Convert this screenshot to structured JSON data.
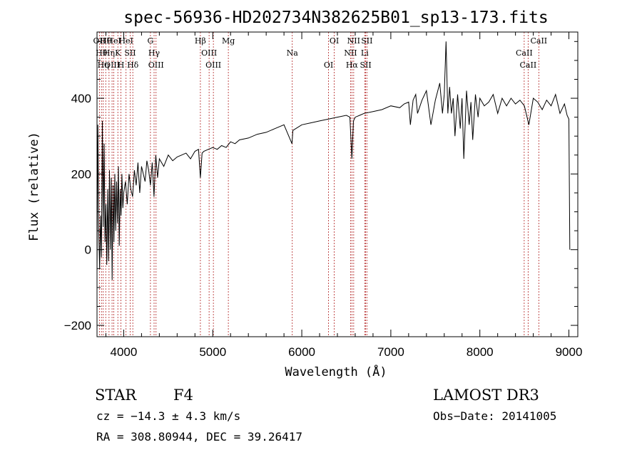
{
  "chart_data": {
    "type": "line",
    "title": "spec-56936-HD202734N382625B01_sp13-173.fits",
    "xlabel": "Wavelength (Å)",
    "ylabel": "Flux (relative)",
    "xlim": [
      3700,
      9100
    ],
    "ylim": [
      -230,
      575
    ],
    "xticks": [
      4000,
      5000,
      6000,
      7000,
      8000,
      9000
    ],
    "yticks": [
      -200,
      0,
      200,
      400
    ],
    "grid": false,
    "legend": "none",
    "line_color": "#000000",
    "marker_color": "#b22222",
    "spectrum": {
      "x": [
        3700,
        3710,
        3720,
        3730,
        3740,
        3750,
        3760,
        3770,
        3780,
        3790,
        3800,
        3810,
        3820,
        3830,
        3840,
        3850,
        3860,
        3870,
        3880,
        3890,
        3900,
        3910,
        3920,
        3930,
        3940,
        3950,
        3960,
        3970,
        3980,
        3990,
        4000,
        4020,
        4040,
        4060,
        4080,
        4100,
        4120,
        4140,
        4160,
        4180,
        4200,
        4220,
        4240,
        4260,
        4280,
        4300,
        4320,
        4340,
        4360,
        4380,
        4400,
        4450,
        4500,
        4550,
        4600,
        4650,
        4700,
        4750,
        4800,
        4840,
        4861,
        4880,
        4900,
        4950,
        5000,
        5050,
        5100,
        5150,
        5200,
        5250,
        5300,
        5400,
        5500,
        5600,
        5700,
        5800,
        5890,
        5900,
        6000,
        6100,
        6200,
        6300,
        6400,
        6500,
        6540,
        6563,
        6580,
        6600,
        6650,
        6700,
        6800,
        6900,
        7000,
        7100,
        7150,
        7200,
        7220,
        7250,
        7280,
        7300,
        7350,
        7400,
        7450,
        7500,
        7550,
        7580,
        7600,
        7620,
        7640,
        7660,
        7680,
        7700,
        7720,
        7750,
        7780,
        7800,
        7820,
        7850,
        7880,
        7900,
        7920,
        7950,
        7980,
        8000,
        8050,
        8100,
        8150,
        8200,
        8250,
        8300,
        8350,
        8400,
        8450,
        8500,
        8550,
        8600,
        8650,
        8700,
        8750,
        8800,
        8850,
        8900,
        8950,
        8980,
        9000,
        9010
      ],
      "y": [
        -60,
        330,
        40,
        -50,
        90,
        -20,
        340,
        60,
        280,
        20,
        120,
        -40,
        160,
        -30,
        210,
        0,
        190,
        -80,
        170,
        20,
        200,
        50,
        180,
        70,
        220,
        10,
        160,
        90,
        200,
        110,
        150,
        180,
        120,
        200,
        160,
        140,
        210,
        170,
        230,
        150,
        220,
        200,
        180,
        235,
        210,
        170,
        230,
        140,
        250,
        190,
        240,
        220,
        250,
        235,
        245,
        250,
        255,
        240,
        260,
        265,
        190,
        255,
        260,
        265,
        270,
        265,
        275,
        270,
        285,
        280,
        290,
        295,
        305,
        310,
        320,
        330,
        280,
        315,
        330,
        335,
        340,
        345,
        350,
        355,
        350,
        240,
        340,
        350,
        355,
        360,
        365,
        370,
        380,
        375,
        385,
        390,
        330,
        395,
        410,
        360,
        395,
        420,
        330,
        395,
        440,
        360,
        410,
        550,
        360,
        430,
        360,
        400,
        300,
        410,
        320,
        400,
        240,
        420,
        330,
        390,
        290,
        410,
        350,
        400,
        380,
        390,
        410,
        360,
        400,
        380,
        400,
        385,
        395,
        380,
        330,
        400,
        390,
        370,
        395,
        380,
        410,
        360,
        385,
        355,
        345,
        0
      ],
      "width": 1
    },
    "reference_lines": [
      {
        "x": 3727,
        "label": "OII"
      },
      {
        "x": 3750,
        "label": "Hθ"
      },
      {
        "x": 3770,
        "label": "Hη"
      },
      {
        "x": 3798,
        "label": "Hθ"
      },
      {
        "x": 3835,
        "label": "Hη"
      },
      {
        "x": 3869,
        "label": "OIII"
      },
      {
        "x": 3889,
        "label": "HeI"
      },
      {
        "x": 3934,
        "label": "K"
      },
      {
        "x": 3969,
        "label": "H"
      },
      {
        "x": 4026,
        "label": "HeI"
      },
      {
        "x": 4072,
        "label": "SII"
      },
      {
        "x": 4102,
        "label": "Hδ"
      },
      {
        "x": 4300,
        "label": "G"
      },
      {
        "x": 4341,
        "label": "Hγ"
      },
      {
        "x": 4363,
        "label": "OIII"
      },
      {
        "x": 4861,
        "label": "Hβ"
      },
      {
        "x": 4959,
        "label": "OIII"
      },
      {
        "x": 5007,
        "label": "OIII"
      },
      {
        "x": 5175,
        "label": "Mg"
      },
      {
        "x": 5893,
        "label": "Na"
      },
      {
        "x": 6300,
        "label": "OI"
      },
      {
        "x": 6364,
        "label": "OI"
      },
      {
        "x": 6548,
        "label": "NII"
      },
      {
        "x": 6563,
        "label": "Hα"
      },
      {
        "x": 6583,
        "label": "NII"
      },
      {
        "x": 6707,
        "label": "Li"
      },
      {
        "x": 6717,
        "label": "SII"
      },
      {
        "x": 6731,
        "label": "SII"
      },
      {
        "x": 8498,
        "label": "CaII"
      },
      {
        "x": 8542,
        "label": "CaII"
      },
      {
        "x": 8662,
        "label": "CaII"
      }
    ]
  },
  "info": {
    "class": "STAR",
    "subclass": "F4",
    "survey": "LAMOST DR3",
    "cz": "cz = −14.3 ± 4.3 km/s",
    "obs_date": "Obs−Date: 20141005",
    "coords": "RA = 308.80944, DEC =  39.26417"
  }
}
